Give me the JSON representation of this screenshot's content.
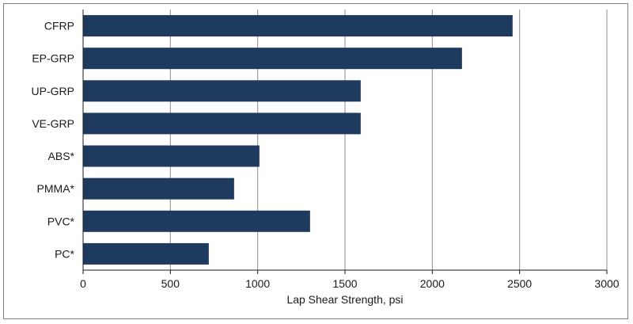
{
  "chart_data": {
    "type": "bar",
    "orientation": "horizontal",
    "categories": [
      "CFRP",
      "EP-GRP",
      "UP-GRP",
      "VE-GRP",
      "ABS*",
      "PMMA*",
      "PVC*",
      "PC*"
    ],
    "values": [
      2460,
      2170,
      1590,
      1590,
      1010,
      865,
      1300,
      720
    ],
    "xlabel": "Lap Shear Strength, psi",
    "ylabel": "",
    "title": "",
    "xlim": [
      0,
      3000
    ],
    "x_ticks": [
      0,
      500,
      1000,
      1500,
      2000,
      2500,
      3000
    ],
    "grid": "vertical",
    "legend": "none",
    "bar_color": "#1f3a5f",
    "grid_color": "#8c8c8c"
  }
}
